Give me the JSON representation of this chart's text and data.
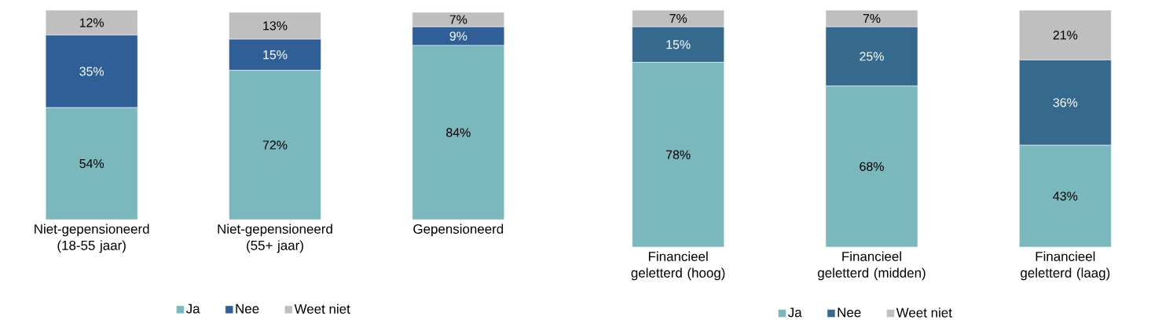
{
  "chart_data": [
    {
      "type": "bar",
      "stacked": true,
      "legend": "bottom",
      "categories": [
        "Niet-gepensioneerd (18-55 jaar)",
        "Niet-gepensioneerd (55+ jaar)",
        "Gepensioneerd"
      ],
      "series": [
        {
          "name": "Ja",
          "color": "#7ab8bd",
          "values": [
            54,
            72,
            84
          ],
          "value_labels": [
            "54%",
            "72%",
            "84%"
          ]
        },
        {
          "name": "Nee",
          "color": "#2f5f96",
          "values": [
            35,
            15,
            9
          ],
          "value_labels": [
            "35%",
            "15%",
            "9%"
          ]
        },
        {
          "name": "Weet niet",
          "color": "#bfbfbf",
          "values": [
            12,
            13,
            7
          ],
          "value_labels": [
            "12%",
            "13%",
            "7%"
          ]
        }
      ]
    },
    {
      "type": "bar",
      "stacked": true,
      "legend": "bottom",
      "categories": [
        "Financieel geletterd (hoog)",
        "Financieel geletterd (midden)",
        "Financieel geletterd (laag)"
      ],
      "series": [
        {
          "name": "Ja",
          "color": "#7ab8bd",
          "values": [
            78,
            68,
            43
          ],
          "value_labels": [
            "78%",
            "68%",
            "43%"
          ]
        },
        {
          "name": "Nee",
          "color": "#356a8e",
          "values": [
            15,
            25,
            36
          ],
          "value_labels": [
            "15%",
            "25%",
            "36%"
          ]
        },
        {
          "name": "Weet niet",
          "color": "#bfbfbf",
          "values": [
            7,
            7,
            21
          ],
          "value_labels": [
            "7%",
            "7%",
            "21%"
          ]
        }
      ]
    }
  ]
}
